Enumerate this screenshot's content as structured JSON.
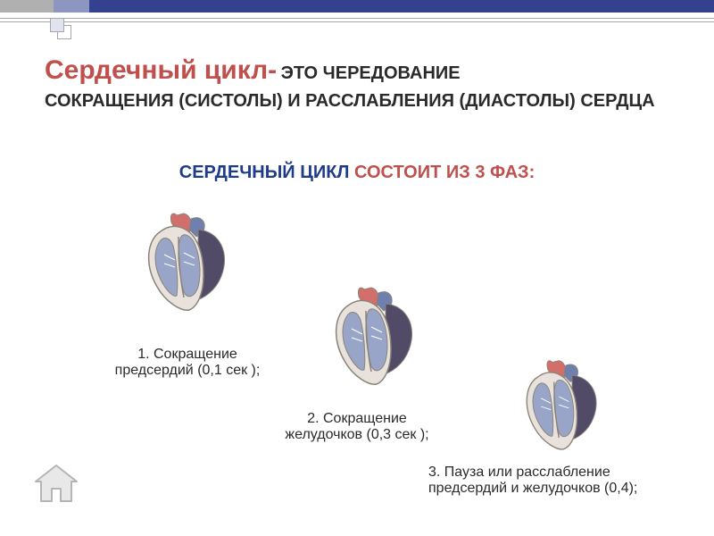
{
  "colors": {
    "c1": "#b0b0b0",
    "c2": "#8c96c0",
    "c3": "#33418f",
    "line": "#a6a6a6",
    "sq": "#dfe4ef",
    "title": "#c0504d",
    "text_dark": "#2a2a2a",
    "sub_blue": "#1f3c8a",
    "sub_red": "#c0504d",
    "heart_body": "#e9e2dc",
    "heart_dark": "#514b67",
    "heart_chamber": "#98a5c9",
    "heart_artery_red": "#d26f6b",
    "heart_artery_blue": "#6f7fae",
    "heart_outline": "#8a8378",
    "home_fill": "#e8e8e8",
    "home_stroke": "#b5b5b5"
  },
  "title": {
    "main": "Сердечный цикл-",
    "rest_line1": " ЭТО ЧЕРЕДОВАНИЕ",
    "line2": "СОКРАЩЕНИЯ (СИСТОЛЫ) И РАССЛАБЛЕНИЯ (ДИАСТОЛЫ) СЕРДЦА",
    "main_fontsize": 30,
    "rest_fontsize": 20
  },
  "subheading": {
    "blue": "СЕРДЕЧНЫЙ ЦИКЛ ",
    "red": "СОСТОИТ  ИЗ 3 ФАЗ:",
    "fontsize": 20
  },
  "phases": [
    {
      "label_l1": "1. Сокращение",
      "label_l2": "предсердий (0,1 сек );",
      "heart_size": 120
    },
    {
      "label_l1": "2. Сокращение",
      "label_l2": "желудочков (0,3 сек );",
      "heart_size": 120
    },
    {
      "label_l1": "3. Пауза или расслабление",
      "label_l2": "предсердий и желудочков (0,4);",
      "heart_size": 110
    }
  ],
  "phase_fontsize": 16,
  "home_icon_size": 54
}
